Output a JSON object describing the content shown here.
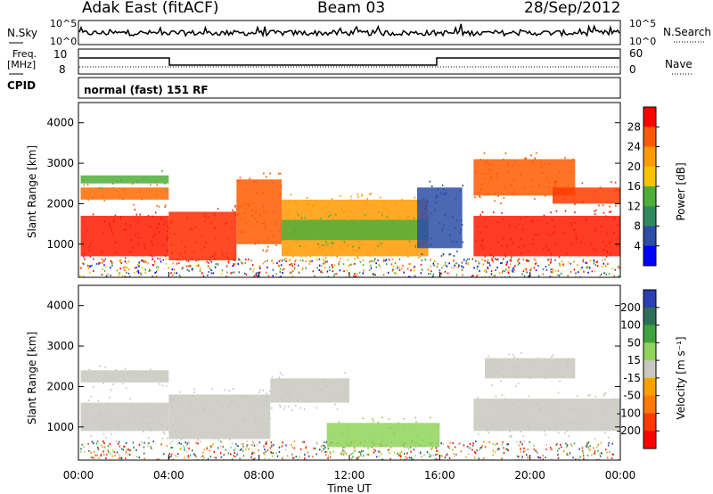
{
  "header": {
    "station": "Adak East (fitACF)",
    "beam": "Beam 03",
    "date": "28/Sep/2012"
  },
  "top_panels": {
    "nsky_label": "N.Sky",
    "nsearch_label": "N.Search",
    "nsky_ticks": [
      "10^5",
      "10^0"
    ],
    "nsky_ticks_right": [
      "10^5",
      "10^0"
    ],
    "freq_label_1": "Freq.",
    "freq_label_2": "[MHz]",
    "freq_ticks": [
      "10",
      "8"
    ],
    "nave_label": "Nave",
    "nave_ticks": [
      "60",
      "0"
    ],
    "cpid_label": "CPID",
    "cpid_text": "normal (fast) 151 RF"
  },
  "chart_data": [
    {
      "type": "heatmap",
      "title": "",
      "xlabel": "Time UT",
      "ylabel": "Slant Range [km]",
      "colorbar_label": "Power [dB]",
      "colorbar_ticks": [
        "28",
        "24",
        "20",
        "16",
        "12",
        "8",
        "4"
      ],
      "colorbar_colors": [
        "#ff0000",
        "#ff5a00",
        "#ff9a00",
        "#f7c200",
        "#4fae3a",
        "#2f8a60",
        "#2b4ea6",
        "#0000ff"
      ],
      "x_ticks": [
        "00:00",
        "04:00",
        "08:00",
        "12:00",
        "16:00",
        "20:00",
        "00:00"
      ],
      "y_ticks": [
        "4000",
        "3000",
        "2000",
        "1000"
      ],
      "xlim_hours": [
        0,
        24
      ],
      "ylim_km": [
        180,
        4500
      ],
      "bands": [
        {
          "t0": 0.1,
          "t1": 4.0,
          "r0": 700,
          "r1": 1700,
          "color": "#ff1a00"
        },
        {
          "t0": 0.1,
          "t1": 4.0,
          "r0": 2100,
          "r1": 2400,
          "color": "#ff6a00"
        },
        {
          "t0": 0.1,
          "t1": 4.0,
          "r0": 2500,
          "r1": 2700,
          "color": "#4fae3a"
        },
        {
          "t0": 4.0,
          "t1": 7.0,
          "r0": 600,
          "r1": 1800,
          "color": "#ff2a00"
        },
        {
          "t0": 7.0,
          "t1": 9.0,
          "r0": 1000,
          "r1": 2600,
          "color": "#ff5a00"
        },
        {
          "t0": 9.0,
          "t1": 15.5,
          "r0": 700,
          "r1": 2100,
          "color": "#ff9a00"
        },
        {
          "t0": 9.0,
          "t1": 15.5,
          "r0": 1100,
          "r1": 1600,
          "color": "#4fae3a"
        },
        {
          "t0": 15.0,
          "t1": 17.0,
          "r0": 900,
          "r1": 2400,
          "color": "#2b4ea6"
        },
        {
          "t0": 17.5,
          "t1": 24.0,
          "r0": 700,
          "r1": 1700,
          "color": "#ff1a00"
        },
        {
          "t0": 17.5,
          "t1": 22.0,
          "r0": 2200,
          "r1": 3100,
          "color": "#ff5a00"
        },
        {
          "t0": 21.0,
          "t1": 24.0,
          "r0": 2000,
          "r1": 2400,
          "color": "#ff3a00"
        }
      ]
    },
    {
      "type": "heatmap",
      "title": "",
      "xlabel": "Time UT",
      "ylabel": "Slant Range [km]",
      "colorbar_label": "Velocity [m s⁻¹]",
      "colorbar_ticks": [
        "200",
        "100",
        "50",
        "15",
        "-15",
        "-50",
        "-100",
        "-200"
      ],
      "colorbar_colors": [
        "#2b3fb0",
        "#2f6f5a",
        "#3fa23f",
        "#8fd45a",
        "#c8c8c0",
        "#f7a000",
        "#ff7a00",
        "#ff3a00",
        "#ff0000"
      ],
      "x_ticks": [
        "00:00",
        "04:00",
        "08:00",
        "12:00",
        "16:00",
        "20:00",
        "00:00"
      ],
      "y_ticks": [
        "4000",
        "3000",
        "2000",
        "1000"
      ],
      "xlim_hours": [
        0,
        24
      ],
      "ylim_km": [
        180,
        4500
      ],
      "bands": [
        {
          "t0": 0.1,
          "t1": 4.0,
          "r0": 900,
          "r1": 1600,
          "color": "#c8c8c0"
        },
        {
          "t0": 0.1,
          "t1": 4.0,
          "r0": 2100,
          "r1": 2400,
          "color": "#c8c8c0"
        },
        {
          "t0": 4.0,
          "t1": 8.5,
          "r0": 700,
          "r1": 1800,
          "color": "#c8c8c0"
        },
        {
          "t0": 8.5,
          "t1": 12.0,
          "r0": 1600,
          "r1": 2200,
          "color": "#c8c8c0"
        },
        {
          "t0": 11.0,
          "t1": 16.0,
          "r0": 500,
          "r1": 1100,
          "color": "#8fd45a"
        },
        {
          "t0": 17.5,
          "t1": 24.0,
          "r0": 900,
          "r1": 1700,
          "color": "#c8c8c0"
        },
        {
          "t0": 18.0,
          "t1": 22.0,
          "r0": 2200,
          "r1": 2700,
          "color": "#c8c8c0"
        }
      ]
    }
  ]
}
